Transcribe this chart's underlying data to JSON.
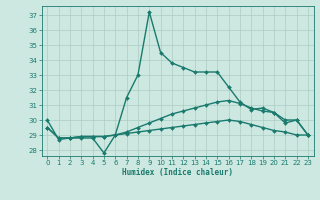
{
  "xlabel": "Humidex (Indice chaleur)",
  "bg_color": "#cce8e0",
  "grid_color": "#aaccC4",
  "line_color": "#1a7a6e",
  "xlim": [
    -0.5,
    23.5
  ],
  "ylim": [
    27.6,
    37.6
  ],
  "yticks": [
    28,
    29,
    30,
    31,
    32,
    33,
    34,
    35,
    36,
    37
  ],
  "xticks": [
    0,
    1,
    2,
    3,
    4,
    5,
    6,
    7,
    8,
    9,
    10,
    11,
    12,
    13,
    14,
    15,
    16,
    17,
    18,
    19,
    20,
    21,
    22,
    23
  ],
  "series": [
    {
      "y": [
        30.0,
        28.7,
        28.8,
        28.8,
        28.8,
        27.8,
        29.0,
        31.5,
        33.0,
        37.2,
        34.5,
        33.8,
        33.5,
        33.2,
        33.2,
        33.2,
        32.2,
        31.2,
        30.7,
        30.8,
        30.5,
        29.8,
        30.0,
        29.0
      ],
      "ls": "-",
      "lw": 1.0,
      "marker": "D",
      "ms": 2.0
    },
    {
      "y": [
        29.5,
        28.8,
        28.8,
        28.9,
        28.9,
        28.9,
        29.0,
        29.2,
        29.5,
        29.8,
        30.1,
        30.4,
        30.6,
        30.8,
        31.0,
        31.2,
        31.3,
        31.1,
        30.8,
        30.6,
        30.5,
        30.0,
        30.0,
        29.0
      ],
      "ls": "-",
      "lw": 1.0,
      "marker": "D",
      "ms": 2.0
    },
    {
      "y": [
        29.5,
        28.8,
        28.8,
        28.9,
        28.9,
        28.9,
        29.0,
        29.1,
        29.2,
        29.3,
        29.4,
        29.5,
        29.6,
        29.7,
        29.8,
        29.9,
        30.0,
        29.9,
        29.7,
        29.5,
        29.3,
        29.2,
        29.0,
        29.0
      ],
      "ls": "-",
      "lw": 1.0,
      "marker": "D",
      "ms": 2.0
    }
  ]
}
